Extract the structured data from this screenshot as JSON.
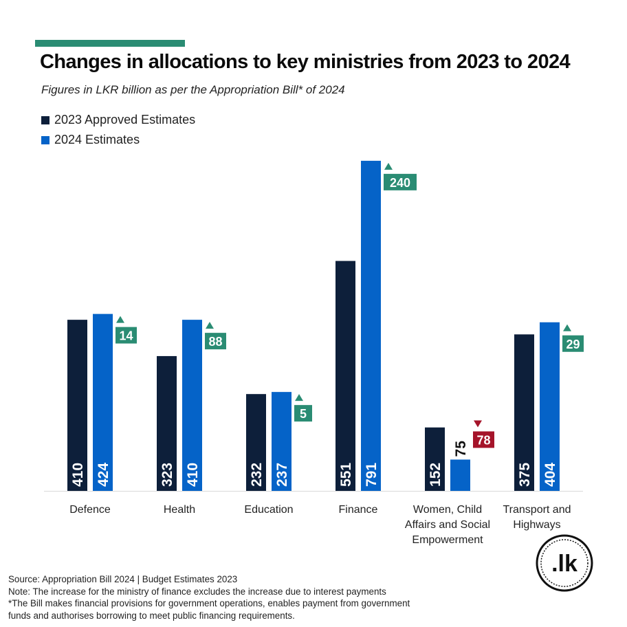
{
  "header": {
    "title": "Changes in allocations to key ministries from 2023 to 2024",
    "subtitle": "Figures in LKR billion as per the Appropriation Bill* of 2024"
  },
  "colors": {
    "accent": "#2a8c73",
    "series_2023": "#0d1f3a",
    "series_2024": "#0563c8",
    "increase": "#2a8c73",
    "decrease": "#a5142a"
  },
  "chart_data": {
    "type": "bar",
    "categories": [
      [
        "Defence"
      ],
      [
        "Health"
      ],
      [
        "Education"
      ],
      [
        "Finance"
      ],
      [
        "Women, Child",
        "Affairs and Social",
        "Empowerment"
      ],
      [
        "Transport and",
        "Highways"
      ]
    ],
    "series": [
      {
        "name": "2023 Approved Estimates",
        "values": [
          410,
          323,
          232,
          551,
          152,
          375
        ]
      },
      {
        "name": "2024 Estimates",
        "values": [
          424,
          410,
          237,
          791,
          75,
          404
        ]
      }
    ],
    "changes": [
      {
        "value": 14,
        "direction": "up"
      },
      {
        "value": 88,
        "direction": "up"
      },
      {
        "value": 5,
        "direction": "up"
      },
      {
        "value": 240,
        "direction": "up"
      },
      {
        "value": 78,
        "direction": "down"
      },
      {
        "value": 29,
        "direction": "up"
      }
    ],
    "ylim": [
      0,
      800
    ],
    "grid": false,
    "legend": "top-left"
  },
  "footer": {
    "source": "Source: Appropriation Bill 2024 | Budget Estimates 2023",
    "note": "Note: The increase for the ministry of finance excludes the increase due to interest payments",
    "footnote_line1": "*The Bill makes financial provisions for government operations, enables payment from government",
    "footnote_line2": "funds and authorises borrowing to meet public financing requirements."
  },
  "logo": {
    "text": ".lk"
  }
}
